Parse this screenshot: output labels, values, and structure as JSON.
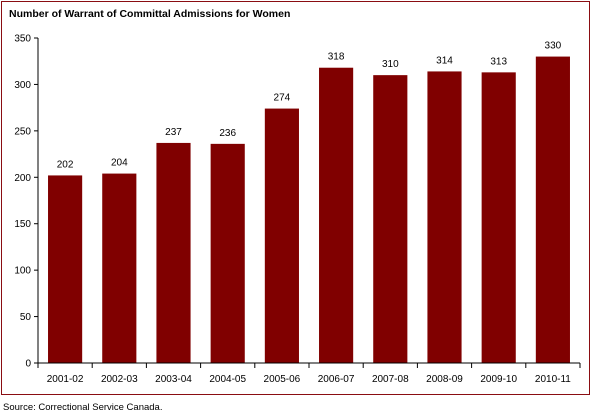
{
  "chart_data": {
    "type": "bar",
    "title": "Number of Warrant of Committal Admissions for Women",
    "xlabel": "",
    "ylabel": "",
    "categories": [
      "2001-02",
      "2002-03",
      "2003-04",
      "2004-05",
      "2005-06",
      "2006-07",
      "2007-08",
      "2008-09",
      "2009-10",
      "2010-11"
    ],
    "values": [
      202,
      204,
      237,
      236,
      274,
      318,
      310,
      314,
      313,
      330
    ],
    "ylim": [
      0,
      350
    ],
    "yticks": [
      0,
      50,
      100,
      150,
      200,
      250,
      300,
      350
    ],
    "grid": false,
    "legend": "none",
    "bar_color": "#800000",
    "data_labels": true
  },
  "footer": {
    "source": "Source:  Correctional Service Canada."
  },
  "colors": {
    "frame_border": "#8a0d12",
    "bar": "#800000",
    "axis": "#000000"
  }
}
